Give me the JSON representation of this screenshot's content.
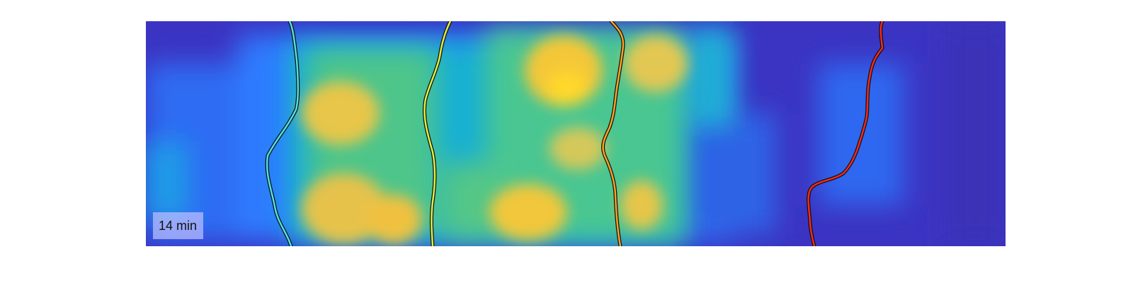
{
  "image": {
    "description_type": "heatmap with traced tracks",
    "colormap": [
      "#3e2ec0",
      "#2f6bff",
      "#12b3d6",
      "#2ad0a0",
      "#9ad04a",
      "#f7c531",
      "#ffdd20"
    ],
    "background_color": "#3a35c4",
    "track_outline_color": "#111111"
  },
  "time_label": "14 min",
  "tracks": [
    {
      "name": "cyan-track",
      "color": "#4fe2e2"
    },
    {
      "name": "yellow-track",
      "color": "#e0f040"
    },
    {
      "name": "orange-track",
      "color": "#ffa21f"
    },
    {
      "name": "red-track",
      "color": "#f5281c"
    }
  ]
}
